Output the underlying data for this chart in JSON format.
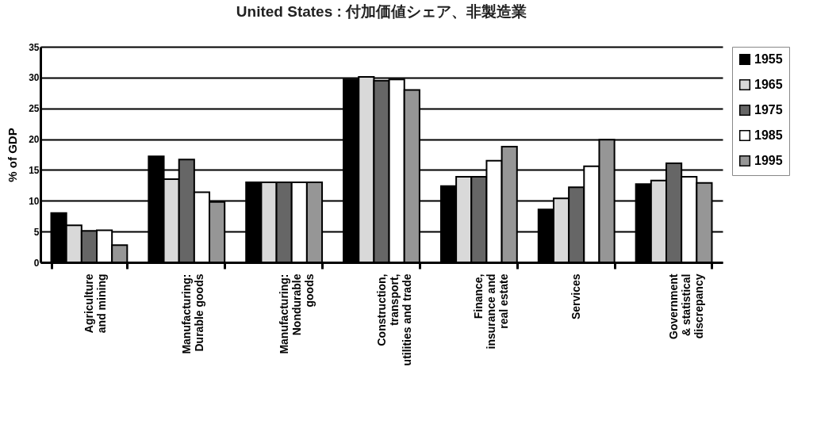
{
  "chart_data": {
    "type": "bar",
    "title": "United States : 付加価値シェア、非製造業",
    "ylabel": "% of GDP",
    "categories": [
      "Agriculture\nand mining",
      "Manufacturing:\nDurable goods",
      "Manufacturing:\nNondurable\ngoods",
      "Construction,\ntransport,\nutilities and trade",
      "Finance,\ninsurance and\nreal estate",
      "Services",
      "Government\n& statistical\ndiscrepancy"
    ],
    "series": [
      {
        "name": "1955",
        "color": "#000000",
        "values": [
          8,
          17.2,
          13,
          29.7,
          12.4,
          8.6,
          12.7
        ]
      },
      {
        "name": "1965",
        "color": "#d9d9d9",
        "values": [
          6,
          13.5,
          13,
          30.1,
          13.9,
          10.4,
          13.3
        ]
      },
      {
        "name": "1975",
        "color": "#666666",
        "values": [
          5.1,
          16.7,
          13,
          29.5,
          13.9,
          12.2,
          16.1
        ]
      },
      {
        "name": "1985",
        "color": "#ffffff",
        "values": [
          5.2,
          11.4,
          13,
          29.7,
          16.5,
          15.6,
          13.9
        ]
      },
      {
        "name": "1995",
        "color": "#969696",
        "values": [
          2.8,
          9.8,
          13,
          28,
          18.8,
          19.9,
          12.9
        ]
      }
    ],
    "ylim": [
      0,
      35
    ],
    "yticks": [
      0,
      5,
      10,
      15,
      20,
      25,
      30,
      35
    ],
    "grid": "y",
    "legend": "top right"
  }
}
